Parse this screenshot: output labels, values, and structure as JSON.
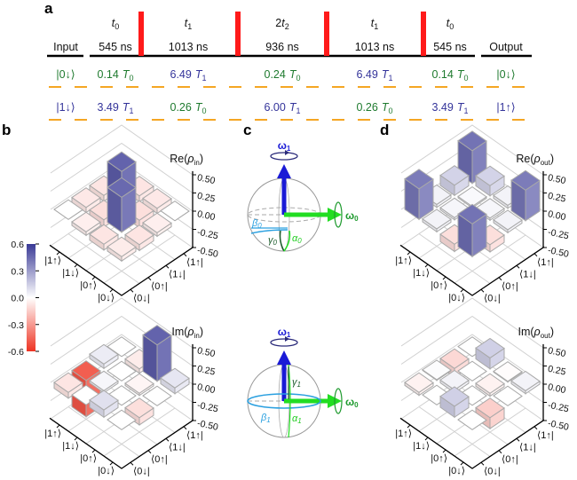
{
  "panel_labels": {
    "a": "a",
    "b": "b",
    "c": "c",
    "d": "d"
  },
  "sequence": {
    "input_label": "Input",
    "output_label": "Output",
    "pulse_color": "#ff1a1a",
    "level_color": "#f5a623",
    "segments": [
      {
        "time_symbol": "t",
        "time_sub": "0",
        "prefix": "",
        "duration": "545 ns"
      },
      {
        "time_symbol": "t",
        "time_sub": "1",
        "prefix": "",
        "duration": "1013 ns"
      },
      {
        "time_symbol": "t",
        "time_sub": "2",
        "prefix": "2",
        "duration": "936 ns"
      },
      {
        "time_symbol": "t",
        "time_sub": "1",
        "prefix": "",
        "duration": "1013 ns"
      },
      {
        "time_symbol": "t",
        "time_sub": "0",
        "prefix": "",
        "duration": "545 ns"
      }
    ],
    "rows": [
      {
        "input": "|0↓⟩",
        "output": "|0↓⟩",
        "cells": [
          {
            "value": "0.14",
            "T": "T",
            "sub": "0",
            "color": "green"
          },
          {
            "value": "6.49",
            "T": "T",
            "sub": "1",
            "color": "blue"
          },
          {
            "value": "0.24",
            "T": "T",
            "sub": "0",
            "color": "green"
          },
          {
            "value": "6.49",
            "T": "T",
            "sub": "1",
            "color": "blue"
          },
          {
            "value": "0.14",
            "T": "T",
            "sub": "0",
            "color": "green"
          }
        ]
      },
      {
        "input": "|1↓⟩",
        "output": "|1↑⟩",
        "cells": [
          {
            "value": "3.49",
            "T": "T",
            "sub": "1",
            "color": "blue"
          },
          {
            "value": "0.26",
            "T": "T",
            "sub": "0",
            "color": "green"
          },
          {
            "value": "6.00",
            "T": "T",
            "sub": "1",
            "color": "blue"
          },
          {
            "value": "0.26",
            "T": "T",
            "sub": "0",
            "color": "green"
          },
          {
            "value": "3.49",
            "T": "T",
            "sub": "1",
            "color": "blue"
          }
        ]
      }
    ]
  },
  "colorbar": {
    "ticks": [
      "0.6",
      "0.3",
      "0.0",
      "-0.3",
      "-0.6"
    ],
    "range": [
      -0.6,
      0.6
    ],
    "positive_color": "#3a3a96",
    "negative_color": "#ee3322"
  },
  "bloch": {
    "omega1": "ω",
    "omega1_sub": "1",
    "omega0": "ω",
    "omega0_sub": "0",
    "top": {
      "beta": "β",
      "beta_sub": "0",
      "gamma": "γ",
      "gamma_sub": "0",
      "alpha": "α",
      "alpha_sub": "0"
    },
    "bottom": {
      "beta": "β",
      "beta_sub": "1",
      "gamma": "γ",
      "gamma_sub": "1",
      "alpha": "α",
      "alpha_sub": "1"
    }
  },
  "chart_data": [
    {
      "type": "bar3d",
      "id": "re_in",
      "title": {
        "prefix": "Re(",
        "rho": "ρ",
        "sub": "in",
        "suffix": ")"
      },
      "row_labels": [
        "|0↓⟩",
        "|0↑⟩",
        "|1↓⟩",
        "|1↑⟩"
      ],
      "col_labels": [
        "⟨0↓|",
        "⟨0↑|",
        "⟨1↓|",
        "⟨1↑|"
      ],
      "zticks": [
        "0.50",
        "0.25",
        "0.00",
        "-0.25",
        "-0.50"
      ],
      "zlim": [
        -0.5,
        0.5
      ],
      "values": [
        [
          -0.06,
          -0.08,
          -0.05,
          0.0
        ],
        [
          -0.08,
          0.48,
          -0.1,
          -0.07
        ],
        [
          -0.05,
          -0.1,
          0.5,
          -0.08
        ],
        [
          0.0,
          -0.07,
          -0.08,
          -0.06
        ]
      ]
    },
    {
      "type": "bar3d",
      "id": "im_in",
      "title": {
        "prefix": "Im(",
        "rho": "ρ",
        "sub": "in",
        "suffix": ")"
      },
      "row_labels": [
        "|0↓⟩",
        "|0↑⟩",
        "|1↓⟩",
        "|1↑⟩"
      ],
      "col_labels": [
        "⟨0↓|",
        "⟨0↑|",
        "⟨1↓|",
        "⟨1↑|"
      ],
      "zticks": [
        "0.50",
        "0.25",
        "0.00",
        "-0.25",
        "-0.50"
      ],
      "zlim": [
        -0.5,
        0.5
      ],
      "values": [
        [
          0.0,
          -0.1,
          0.0,
          0.08
        ],
        [
          0.1,
          0.0,
          -0.03,
          0.5
        ],
        [
          0.0,
          0.03,
          0.0,
          -0.06
        ],
        [
          -0.08,
          -0.5,
          0.06,
          0.0
        ]
      ]
    },
    {
      "type": "bar3d",
      "id": "re_out",
      "title": {
        "prefix": "Re(",
        "rho": "ρ",
        "sub": "out",
        "suffix": ")"
      },
      "row_labels": [
        "|0↓⟩",
        "|0↑⟩",
        "|1↓⟩",
        "|1↑⟩"
      ],
      "col_labels": [
        "⟨0↓|",
        "⟨0↑|",
        "⟨1↓|",
        "⟨1↑|"
      ],
      "zticks": [
        "0.50",
        "0.25",
        "0.00",
        "-0.25",
        "-0.50"
      ],
      "zlim": [
        -0.5,
        0.5
      ],
      "values": [
        [
          0.45,
          -0.1,
          0.04,
          0.42
        ],
        [
          -0.1,
          0.02,
          0.03,
          0.04
        ],
        [
          0.04,
          0.03,
          0.02,
          0.14
        ],
        [
          0.42,
          0.04,
          0.14,
          0.45
        ]
      ]
    },
    {
      "type": "bar3d",
      "id": "im_out",
      "title": {
        "prefix": "Im(",
        "rho": "ρ",
        "sub": "out",
        "suffix": ")"
      },
      "row_labels": [
        "|0↓⟩",
        "|0↑⟩",
        "|1↓⟩",
        "|1↑⟩"
      ],
      "col_labels": [
        "⟨0↓|",
        "⟨0↑|",
        "⟨1↓|",
        "⟨1↑|"
      ],
      "zticks": [
        "0.50",
        "0.25",
        "0.00",
        "-0.25",
        "-0.50"
      ],
      "zlim": [
        -0.5,
        0.5
      ],
      "values": [
        [
          0.0,
          -0.15,
          0.0,
          0.04
        ],
        [
          0.15,
          0.0,
          -0.04,
          -0.01
        ],
        [
          0.0,
          0.04,
          0.0,
          0.15
        ],
        [
          -0.04,
          0.01,
          -0.12,
          0.0
        ]
      ]
    }
  ]
}
